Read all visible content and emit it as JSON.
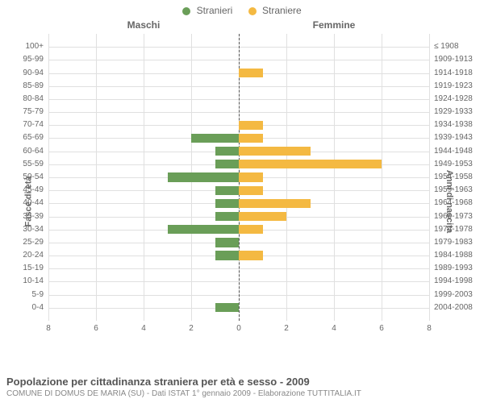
{
  "legend": {
    "male": {
      "label": "Stranieri",
      "color": "#6a9e58"
    },
    "female": {
      "label": "Straniere",
      "color": "#f4b942"
    }
  },
  "column_titles": {
    "left": "Maschi",
    "right": "Femmine"
  },
  "axis_titles": {
    "left": "Fasce di età",
    "right": "Anni di nascita"
  },
  "chart": {
    "type": "population-pyramid",
    "xmax": 8,
    "xticks": [
      8,
      6,
      4,
      2,
      0,
      2,
      4,
      6,
      8
    ],
    "grid_color": "#e0e0e0",
    "center_line_color": "#555555",
    "background_color": "#ffffff",
    "bar_height_ratio": 0.7,
    "rows": [
      {
        "age": "100+",
        "years": "≤ 1908",
        "male": 0,
        "female": 0
      },
      {
        "age": "95-99",
        "years": "1909-1913",
        "male": 0,
        "female": 0
      },
      {
        "age": "90-94",
        "years": "1914-1918",
        "male": 0,
        "female": 1
      },
      {
        "age": "85-89",
        "years": "1919-1923",
        "male": 0,
        "female": 0
      },
      {
        "age": "80-84",
        "years": "1924-1928",
        "male": 0,
        "female": 0
      },
      {
        "age": "75-79",
        "years": "1929-1933",
        "male": 0,
        "female": 0
      },
      {
        "age": "70-74",
        "years": "1934-1938",
        "male": 0,
        "female": 1
      },
      {
        "age": "65-69",
        "years": "1939-1943",
        "male": 2,
        "female": 1
      },
      {
        "age": "60-64",
        "years": "1944-1948",
        "male": 1,
        "female": 3
      },
      {
        "age": "55-59",
        "years": "1949-1953",
        "male": 1,
        "female": 6
      },
      {
        "age": "50-54",
        "years": "1954-1958",
        "male": 3,
        "female": 1
      },
      {
        "age": "45-49",
        "years": "1959-1963",
        "male": 1,
        "female": 1
      },
      {
        "age": "40-44",
        "years": "1964-1968",
        "male": 1,
        "female": 3
      },
      {
        "age": "35-39",
        "years": "1969-1973",
        "male": 1,
        "female": 2
      },
      {
        "age": "30-34",
        "years": "1974-1978",
        "male": 3,
        "female": 1
      },
      {
        "age": "25-29",
        "years": "1979-1983",
        "male": 1,
        "female": 0
      },
      {
        "age": "20-24",
        "years": "1984-1988",
        "male": 1,
        "female": 1
      },
      {
        "age": "15-19",
        "years": "1989-1993",
        "male": 0,
        "female": 0
      },
      {
        "age": "10-14",
        "years": "1994-1998",
        "male": 0,
        "female": 0
      },
      {
        "age": "5-9",
        "years": "1999-2003",
        "male": 0,
        "female": 0
      },
      {
        "age": "0-4",
        "years": "2004-2008",
        "male": 1,
        "female": 0
      }
    ]
  },
  "caption": {
    "title": "Popolazione per cittadinanza straniera per età e sesso - 2009",
    "subtitle": "COMUNE DI DOMUS DE MARIA (SU) - Dati ISTAT 1° gennaio 2009 - Elaborazione TUTTITALIA.IT"
  },
  "fonts": {
    "label_fontsize": 10,
    "title_fontsize": 13,
    "subtitle_fontsize": 10,
    "text_color": "#666666"
  }
}
